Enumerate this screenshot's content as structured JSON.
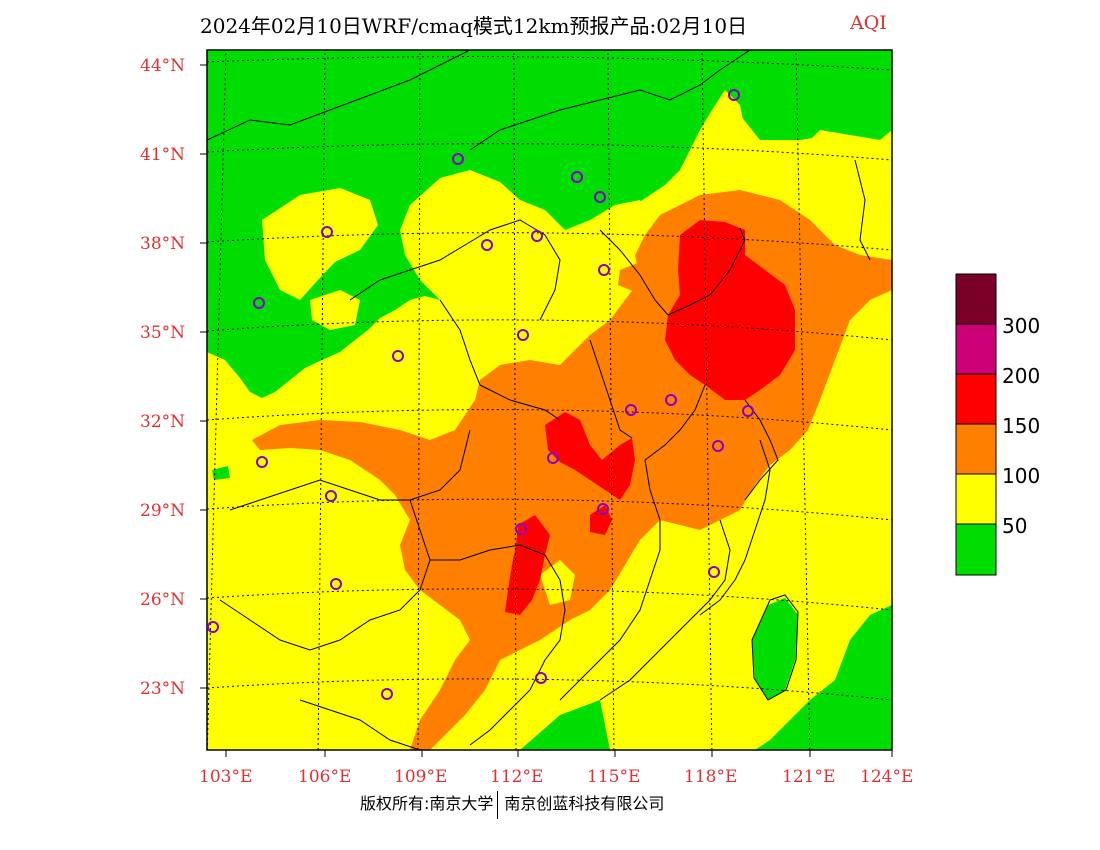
{
  "title": {
    "main": "2024年02月10日WRF/cmaq模式12km预报产品:02月10日",
    "variable": "AQI"
  },
  "axes": {
    "lat_labels": [
      "44°N",
      "41°N",
      "38°N",
      "35°N",
      "32°N",
      "29°N",
      "26°N",
      "23°N"
    ],
    "lon_labels": [
      "103°E",
      "106°E",
      "109°E",
      "112°E",
      "115°E",
      "118°E",
      "121°E",
      "124°E"
    ]
  },
  "legend": {
    "colors": [
      "#00dd00",
      "#ffff00",
      "#ff8000",
      "#ff0000",
      "#cc0077",
      "#7a0028"
    ],
    "labels": [
      "50",
      "100",
      "150",
      "200",
      "300"
    ]
  },
  "footer": {
    "left": "版权所有:南京大学",
    "right": "南京创蓝科技有限公司"
  },
  "map_colors": {
    "green": "#00dd00",
    "yellow": "#ffff00",
    "orange": "#ff8000",
    "red": "#ff0000",
    "station_marker": "#8800cc"
  }
}
